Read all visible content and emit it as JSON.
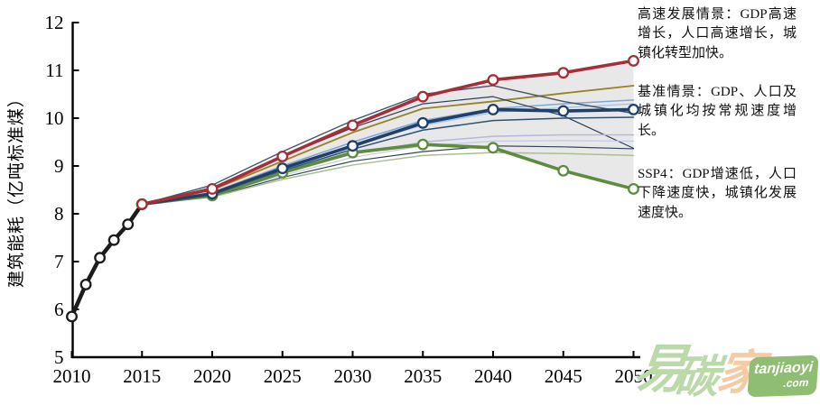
{
  "annotations": [
    {
      "id": "high",
      "text": "高速发展情景：GDP高速增长，人口高速增长，城镇化转型加快。"
    },
    {
      "id": "baseline",
      "text": "基准情景：GDP、人口及城镇化均按常规速度增长。"
    },
    {
      "id": "ssp4",
      "text": "SSP4：GDP增速低，人口下降速度快，城镇化发展速度快。"
    }
  ],
  "watermark": {
    "chars": [
      "易",
      "碳",
      "家"
    ],
    "domain": "tanjiaoyi",
    "tld": ".com",
    "char_green": "#bcd9aa",
    "char_peach": "#f5cba3",
    "badge_green": "#8fbd72"
  },
  "chart_data": {
    "type": "line",
    "title": "",
    "xlabel": "",
    "ylabel": "建筑能耗（亿吨标准煤）",
    "xlim": [
      2010,
      2050
    ],
    "ylim": [
      5,
      12
    ],
    "x_ticks": [
      2010,
      2015,
      2020,
      2025,
      2030,
      2035,
      2040,
      2045,
      2050
    ],
    "y_ticks": [
      5,
      6,
      7,
      8,
      9,
      10,
      11,
      12
    ],
    "grid": false,
    "legend_position": "none",
    "band": {
      "x": [
        2015,
        2020,
        2025,
        2030,
        2035,
        2040,
        2045,
        2050
      ],
      "upper": [
        8.2,
        8.52,
        9.18,
        9.82,
        10.42,
        10.75,
        10.93,
        11.15
      ],
      "lower": [
        8.2,
        8.36,
        8.84,
        9.25,
        9.42,
        9.36,
        8.88,
        8.52
      ],
      "color": "#d5d5d5",
      "opacity": 0.55
    },
    "series": [
      {
        "name": "ensemble-olive",
        "color": "#97831f",
        "width": 1.8,
        "markers": false,
        "x": [
          2015,
          2020,
          2025,
          2030,
          2035,
          2040,
          2045,
          2050
        ],
        "values": [
          8.2,
          8.5,
          9.1,
          9.7,
          10.2,
          10.35,
          10.52,
          10.68
        ]
      },
      {
        "name": "ensemble-steelblue-1",
        "color": "#7da7d9",
        "width": 1.5,
        "markers": false,
        "x": [
          2015,
          2020,
          2025,
          2030,
          2035,
          2040,
          2045,
          2050
        ],
        "values": [
          8.2,
          8.45,
          9.0,
          9.5,
          9.95,
          10.2,
          10.3,
          10.38
        ]
      },
      {
        "name": "ensemble-steelblue-2",
        "color": "#9dc3e6",
        "width": 1.3,
        "markers": false,
        "x": [
          2015,
          2020,
          2025,
          2030,
          2035,
          2040,
          2045,
          2050
        ],
        "values": [
          8.2,
          8.42,
          8.95,
          9.45,
          9.85,
          10.12,
          10.22,
          10.3
        ]
      },
      {
        "name": "ensemble-slate-peak-1",
        "color": "#44546a",
        "width": 1.4,
        "markers": false,
        "x": [
          2015,
          2020,
          2025,
          2030,
          2035,
          2040,
          2045,
          2050
        ],
        "values": [
          8.2,
          8.6,
          9.3,
          9.95,
          10.5,
          10.68,
          10.35,
          10.1
        ]
      },
      {
        "name": "ensemble-slate-peak-2",
        "color": "#2e4057",
        "width": 1.2,
        "markers": false,
        "x": [
          2015,
          2020,
          2025,
          2030,
          2035,
          2040,
          2045,
          2050
        ],
        "values": [
          8.2,
          8.55,
          9.2,
          9.8,
          10.3,
          10.45,
          10.05,
          9.37
        ]
      },
      {
        "name": "ensemble-navy-mid",
        "color": "#2f5373",
        "width": 1.5,
        "markers": false,
        "x": [
          2015,
          2020,
          2025,
          2030,
          2035,
          2040,
          2045,
          2050
        ],
        "values": [
          8.2,
          8.4,
          8.9,
          9.35,
          9.75,
          9.95,
          10.0,
          10.02
        ]
      },
      {
        "name": "ensemble-lavender-1",
        "color": "#b3b8dc",
        "width": 1.5,
        "markers": false,
        "x": [
          2015,
          2020,
          2025,
          2030,
          2035,
          2040,
          2045,
          2050
        ],
        "values": [
          8.2,
          8.4,
          8.85,
          9.25,
          9.5,
          9.62,
          9.65,
          9.65
        ]
      },
      {
        "name": "ensemble-lavender-2",
        "color": "#c3c8e4",
        "width": 1.2,
        "markers": false,
        "x": [
          2015,
          2020,
          2025,
          2030,
          2035,
          2040,
          2045,
          2050
        ],
        "values": [
          8.2,
          8.38,
          8.8,
          9.18,
          9.42,
          9.52,
          9.53,
          9.52
        ]
      },
      {
        "name": "ensemble-navy-low",
        "color": "#31475c",
        "width": 1.2,
        "markers": false,
        "x": [
          2015,
          2020,
          2025,
          2030,
          2035,
          2040,
          2045,
          2050
        ],
        "values": [
          8.2,
          8.36,
          8.76,
          9.1,
          9.3,
          9.42,
          9.4,
          9.36
        ]
      },
      {
        "name": "ensemble-lightgreen",
        "color": "#a9c08e",
        "width": 1.5,
        "markers": false,
        "x": [
          2015,
          2020,
          2025,
          2030,
          2035,
          2040,
          2045,
          2050
        ],
        "values": [
          8.2,
          8.35,
          8.72,
          9.02,
          9.22,
          9.28,
          9.26,
          9.22
        ]
      },
      {
        "name": "历史能耗",
        "color": "#1c1c1c",
        "width": 4.5,
        "markers": true,
        "x": [
          2010,
          2011,
          2012,
          2013,
          2014,
          2015
        ],
        "values": [
          5.85,
          6.52,
          7.08,
          7.45,
          7.78,
          8.2
        ]
      },
      {
        "name": "SSP4",
        "color": "#5e8c3e",
        "width": 3.6,
        "markers": true,
        "x": [
          2015,
          2020,
          2025,
          2030,
          2035,
          2040,
          2045,
          2050
        ],
        "values": [
          8.2,
          8.38,
          8.86,
          9.28,
          9.45,
          9.38,
          8.9,
          8.52
        ]
      },
      {
        "name": "基准情景",
        "color": "#20406a",
        "width": 3.6,
        "markers": true,
        "x": [
          2015,
          2020,
          2025,
          2030,
          2035,
          2040,
          2045,
          2050
        ],
        "values": [
          8.2,
          8.42,
          8.95,
          9.42,
          9.9,
          10.18,
          10.15,
          10.18
        ]
      },
      {
        "name": "高速发展情景",
        "color": "#a33038",
        "width": 3.6,
        "markers": true,
        "x": [
          2015,
          2020,
          2025,
          2030,
          2035,
          2040,
          2045,
          2050
        ],
        "values": [
          8.2,
          8.52,
          9.2,
          9.85,
          10.45,
          10.8,
          10.95,
          11.2
        ]
      }
    ]
  }
}
